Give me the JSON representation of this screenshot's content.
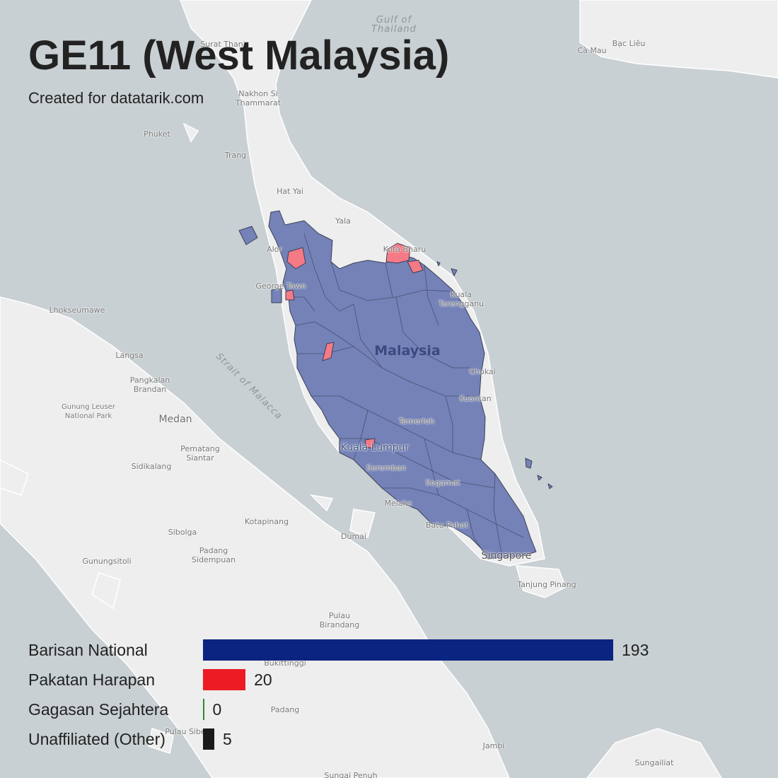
{
  "title": "GE11 (West Malaysia)",
  "subtitle": "Created for datatarik.com",
  "colors": {
    "sea": "#c9d0d3",
    "land": "#eeeeee",
    "region_fill_bn": "#7482b8",
    "region_fill_ph": "#f47a86",
    "region_stroke": "#3b3f56"
  },
  "map_labels": [
    {
      "id": "gulf-of-thailand",
      "text": "Gulf of\nThailand",
      "kind": "sea"
    },
    {
      "id": "strait-of-malacca",
      "text": "Strait of Malacca",
      "kind": "sea"
    },
    {
      "id": "malaysia",
      "text": "Malaysia",
      "kind": "country"
    },
    {
      "id": "surat-thani",
      "text": "Surat Thani",
      "kind": "city"
    },
    {
      "id": "nakhon-si-thammarat",
      "text": "Nakhon Si\nThammarat",
      "kind": "city"
    },
    {
      "id": "phuket",
      "text": "Phuket",
      "kind": "city"
    },
    {
      "id": "trang",
      "text": "Trang",
      "kind": "city"
    },
    {
      "id": "hat-yai",
      "text": "Hat Yai",
      "kind": "city"
    },
    {
      "id": "yala",
      "text": "Yala",
      "kind": "city"
    },
    {
      "id": "alor-setar",
      "text": "Alor",
      "kind": "city"
    },
    {
      "id": "kota-bharu",
      "text": "Kota Bharu",
      "kind": "city"
    },
    {
      "id": "george-town",
      "text": "George Town",
      "kind": "city"
    },
    {
      "id": "kuala-terengganu",
      "text": "Kuala\nTerengganu",
      "kind": "city"
    },
    {
      "id": "chukai",
      "text": "Chukai",
      "kind": "city"
    },
    {
      "id": "kuantan",
      "text": "Kuantan",
      "kind": "city"
    },
    {
      "id": "temerloh",
      "text": "Temerloh",
      "kind": "city"
    },
    {
      "id": "kuala-lumpur",
      "text": "Kuala Lumpur",
      "kind": "city-big"
    },
    {
      "id": "seremban",
      "text": "Seremban",
      "kind": "city"
    },
    {
      "id": "segamat",
      "text": "Segamat",
      "kind": "city"
    },
    {
      "id": "melaka",
      "text": "Melaka",
      "kind": "city"
    },
    {
      "id": "batu-pahat",
      "text": "Batu Pahat",
      "kind": "city"
    },
    {
      "id": "singapore",
      "text": "Singapore",
      "kind": "city-big"
    },
    {
      "id": "tanjung-pinang",
      "text": "Tanjung Pinang",
      "kind": "city"
    },
    {
      "id": "lhokseumawe",
      "text": "Lhokseumawe",
      "kind": "city"
    },
    {
      "id": "langsa",
      "text": "Langsa",
      "kind": "city"
    },
    {
      "id": "pangkalan-brandan",
      "text": "Pangkalan\nBrandan",
      "kind": "city"
    },
    {
      "id": "gunung-leuser",
      "text": "Gunung Leuser\nNational Park",
      "kind": "city"
    },
    {
      "id": "medan",
      "text": "Medan",
      "kind": "city-dark"
    },
    {
      "id": "pematang-siantar",
      "text": "Pematang\nSiantar",
      "kind": "city"
    },
    {
      "id": "sidikalang",
      "text": "Sidikalang",
      "kind": "city"
    },
    {
      "id": "kotapinang",
      "text": "Kotapinang",
      "kind": "city"
    },
    {
      "id": "sibolga",
      "text": "Sibolga",
      "kind": "city"
    },
    {
      "id": "padang-sidempuan",
      "text": "Padang\nSidempuan",
      "kind": "city"
    },
    {
      "id": "gunungsitoli",
      "text": "Gunungsitoli",
      "kind": "city"
    },
    {
      "id": "dumai",
      "text": "Dumai",
      "kind": "city"
    },
    {
      "id": "pulau-birandang",
      "text": "Pulau\nBirandang",
      "kind": "city"
    },
    {
      "id": "bukittinggi",
      "text": "Bukittinggi",
      "kind": "city"
    },
    {
      "id": "padang",
      "text": "Padang",
      "kind": "city"
    },
    {
      "id": "pulau-siberut",
      "text": "Pulau Sibe",
      "kind": "city"
    },
    {
      "id": "jambi",
      "text": "Jambi",
      "kind": "city"
    },
    {
      "id": "sungai-penuh",
      "text": "Sungai Penuh",
      "kind": "city"
    },
    {
      "id": "sungailiat",
      "text": "Sungailiat",
      "kind": "city"
    },
    {
      "id": "ca-mau",
      "text": "Cà Mau",
      "kind": "city"
    },
    {
      "id": "bac-lieu",
      "text": "Bạc Liêu",
      "kind": "city"
    }
  ],
  "results": [
    {
      "party": "Barisan National",
      "seats": 193,
      "color": "#0b2481"
    },
    {
      "party": "Pakatan Harapan",
      "seats": 20,
      "color": "#ed1c24"
    },
    {
      "party": "Gagasan Sejahtera",
      "seats": 0,
      "color": "#2e8b2e"
    },
    {
      "party": "Unaffiliated (Other)",
      "seats": 5,
      "color": "#1a1a1a"
    }
  ]
}
